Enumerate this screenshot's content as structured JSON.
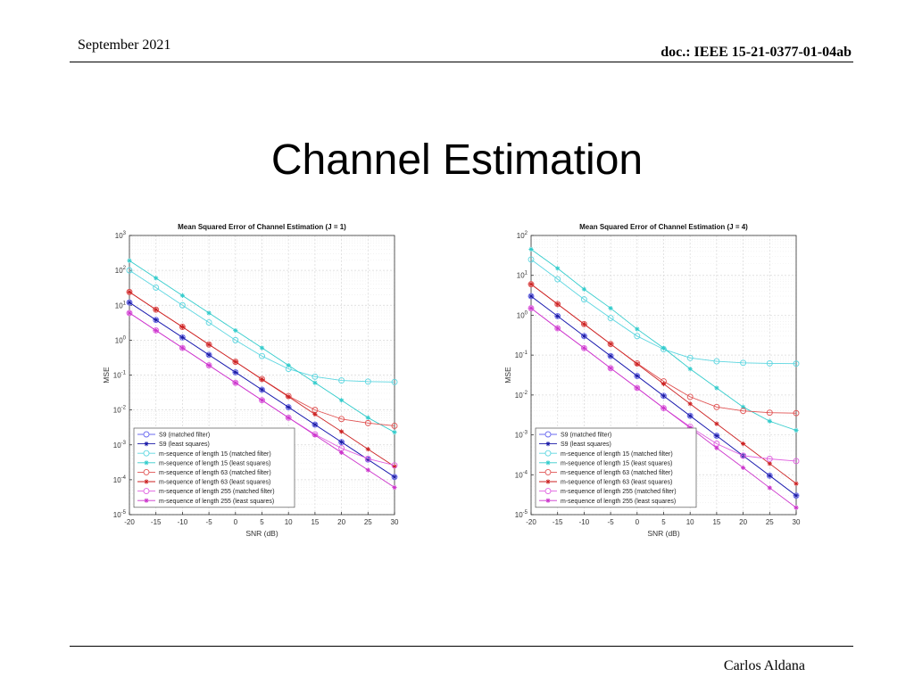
{
  "header": {
    "date": "September 2021",
    "doc_id": "doc.: IEEE 15-21-0377-01-04ab"
  },
  "slide_title": "Channel Estimation",
  "footer": {
    "author": "Carlos Aldana"
  },
  "chart_data": [
    {
      "type": "line",
      "title": "Mean Squared Error of Channel Estimation (J = 1)",
      "xlabel": "SNR (dB)",
      "ylabel": "MSE",
      "yscale": "log",
      "xlim": [
        -20,
        30
      ],
      "ylim_exp": [
        -5,
        3
      ],
      "x": [
        -20,
        -15,
        -10,
        -5,
        0,
        5,
        10,
        15,
        20,
        25,
        30
      ],
      "xticks": [
        "-20",
        "-15",
        "-10",
        "-5",
        "0",
        "5",
        "10",
        "15",
        "20",
        "25",
        "30"
      ],
      "grid": true,
      "legend_position": "bottom-left",
      "series": [
        {
          "name": "S9 (matched filter)",
          "color": "#6b6bf0",
          "marker": "circle",
          "values": [
            12,
            3.8,
            1.2,
            0.38,
            0.12,
            0.038,
            0.012,
            0.0038,
            0.0012,
            0.00038,
            0.00012
          ]
        },
        {
          "name": "S9 (least squares)",
          "color": "#1a1aa8",
          "marker": "star",
          "values": [
            12,
            3.8,
            1.2,
            0.38,
            0.12,
            0.038,
            0.012,
            0.0038,
            0.0012,
            0.00038,
            0.00012
          ]
        },
        {
          "name": "m-sequence of length 15 (matched filter)",
          "color": "#5cd6e0",
          "marker": "circle",
          "values": [
            100,
            32,
            10,
            3.2,
            1.0,
            0.35,
            0.15,
            0.09,
            0.07,
            0.065,
            0.063
          ]
        },
        {
          "name": "m-sequence of length 15 (least squares)",
          "color": "#33cccc",
          "marker": "star",
          "values": [
            190,
            60,
            19,
            6,
            1.9,
            0.6,
            0.19,
            0.06,
            0.019,
            0.006,
            0.0023
          ]
        },
        {
          "name": "m-sequence of length 63 (matched filter)",
          "color": "#e05252",
          "marker": "circle",
          "values": [
            24,
            7.5,
            2.4,
            0.75,
            0.24,
            0.077,
            0.025,
            0.01,
            0.0055,
            0.0042,
            0.0035
          ]
        },
        {
          "name": "m-sequence of length 63 (least squares)",
          "color": "#cc2222",
          "marker": "star",
          "values": [
            24,
            7.5,
            2.4,
            0.75,
            0.24,
            0.075,
            0.024,
            0.0075,
            0.0024,
            0.00075,
            0.00024
          ]
        },
        {
          "name": "m-sequence of length 255 (matched filter)",
          "color": "#e060e0",
          "marker": "circle",
          "values": [
            6,
            1.9,
            0.6,
            0.19,
            0.06,
            0.019,
            0.006,
            0.002,
            0.0008,
            0.0004,
            0.00026
          ]
        },
        {
          "name": "m-sequence of length 255 (least squares)",
          "color": "#cc33cc",
          "marker": "star",
          "values": [
            6,
            1.9,
            0.6,
            0.19,
            0.06,
            0.019,
            0.006,
            0.0019,
            0.0006,
            0.00019,
            6e-05
          ]
        }
      ]
    },
    {
      "type": "line",
      "title": "Mean Squared Error of Channel Estimation (J = 4)",
      "xlabel": "SNR (dB)",
      "ylabel": "MSE",
      "yscale": "log",
      "xlim": [
        -20,
        30
      ],
      "ylim_exp": [
        -5,
        2
      ],
      "x": [
        -20,
        -15,
        -10,
        -5,
        0,
        5,
        10,
        15,
        20,
        25,
        30
      ],
      "xticks": [
        "-20",
        "-15",
        "-10",
        "-5",
        "0",
        "5",
        "10",
        "15",
        "20",
        "25",
        "30"
      ],
      "grid": true,
      "legend_position": "bottom-left",
      "series": [
        {
          "name": "S9 (matched filter)",
          "color": "#6b6bf0",
          "marker": "circle",
          "values": [
            3,
            0.95,
            0.3,
            0.095,
            0.03,
            0.0095,
            0.003,
            0.00095,
            0.0003,
            9.5e-05,
            3e-05
          ]
        },
        {
          "name": "S9 (least squares)",
          "color": "#1a1aa8",
          "marker": "star",
          "values": [
            3,
            0.95,
            0.3,
            0.095,
            0.03,
            0.0095,
            0.003,
            0.00095,
            0.0003,
            9.5e-05,
            3e-05
          ]
        },
        {
          "name": "m-sequence of length 15 (matched filter)",
          "color": "#5cd6e0",
          "marker": "circle",
          "values": [
            25,
            8,
            2.5,
            0.85,
            0.3,
            0.14,
            0.085,
            0.07,
            0.064,
            0.062,
            0.061
          ]
        },
        {
          "name": "m-sequence of length 15 (least squares)",
          "color": "#33cccc",
          "marker": "star",
          "values": [
            45,
            15,
            4.5,
            1.5,
            0.45,
            0.15,
            0.045,
            0.015,
            0.005,
            0.0022,
            0.0013
          ]
        },
        {
          "name": "m-sequence of length 63 (matched filter)",
          "color": "#e05252",
          "marker": "circle",
          "values": [
            6,
            1.9,
            0.6,
            0.19,
            0.062,
            0.022,
            0.009,
            0.005,
            0.004,
            0.0036,
            0.0035
          ]
        },
        {
          "name": "m-sequence of length 63 (least squares)",
          "color": "#cc2222",
          "marker": "star",
          "values": [
            6,
            1.9,
            0.6,
            0.19,
            0.06,
            0.019,
            0.006,
            0.0019,
            0.0006,
            0.00019,
            6e-05
          ]
        },
        {
          "name": "m-sequence of length 255 (matched filter)",
          "color": "#e060e0",
          "marker": "circle",
          "values": [
            1.5,
            0.47,
            0.15,
            0.047,
            0.015,
            0.0047,
            0.0016,
            0.0006,
            0.0003,
            0.00025,
            0.00022
          ]
        },
        {
          "name": "m-sequence of length 255 (least squares)",
          "color": "#cc33cc",
          "marker": "star",
          "values": [
            1.5,
            0.47,
            0.15,
            0.047,
            0.015,
            0.0047,
            0.0015,
            0.00047,
            0.00015,
            4.7e-05,
            1.5e-05
          ]
        }
      ]
    }
  ]
}
